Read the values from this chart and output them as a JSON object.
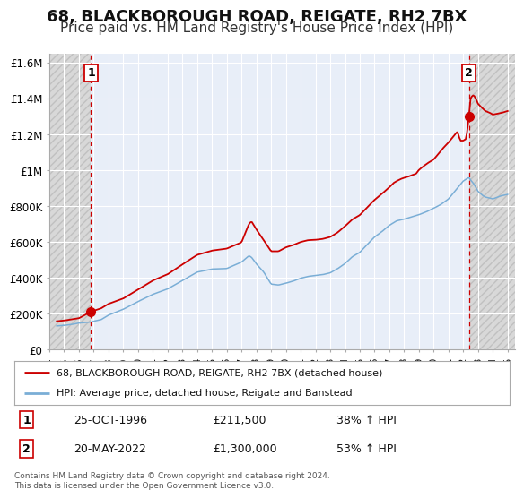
{
  "title": "68, BLACKBOROUGH ROAD, REIGATE, RH2 7BX",
  "subtitle": "Price paid vs. HM Land Registry's House Price Index (HPI)",
  "title_fontsize": 13,
  "subtitle_fontsize": 11,
  "background_color": "#ffffff",
  "plot_bg_color": "#e8eef8",
  "grid_color": "#ffffff",
  "red_line_color": "#cc0000",
  "blue_line_color": "#7aaed6",
  "sale1_date_num": 1996.82,
  "sale1_value": 211500,
  "sale1_label": "1",
  "sale1_date_str": "25-OCT-1996",
  "sale1_price_str": "£211,500",
  "sale1_pct_str": "38% ↑ HPI",
  "sale2_date_num": 2022.38,
  "sale2_value": 1300000,
  "sale2_label": "2",
  "sale2_date_str": "20-MAY-2022",
  "sale2_price_str": "£1,300,000",
  "sale2_pct_str": "53% ↑ HPI",
  "xmin": 1994.0,
  "xmax": 2025.5,
  "ymin": 0,
  "ymax": 1650000,
  "yticks": [
    0,
    200000,
    400000,
    600000,
    800000,
    1000000,
    1200000,
    1400000,
    1600000
  ],
  "ytick_labels": [
    "£0",
    "£200K",
    "£400K",
    "£600K",
    "£800K",
    "£1M",
    "£1.2M",
    "£1.4M",
    "£1.6M"
  ],
  "xticks": [
    1994,
    1995,
    1996,
    1997,
    1998,
    1999,
    2000,
    2001,
    2002,
    2003,
    2004,
    2005,
    2006,
    2007,
    2008,
    2009,
    2010,
    2011,
    2012,
    2013,
    2014,
    2015,
    2016,
    2017,
    2018,
    2019,
    2020,
    2021,
    2022,
    2023,
    2024,
    2025
  ],
  "legend_line1": "68, BLACKBOROUGH ROAD, REIGATE, RH2 7BX (detached house)",
  "legend_line2": "HPI: Average price, detached house, Reigate and Banstead",
  "footer1": "Contains HM Land Registry data © Crown copyright and database right 2024.",
  "footer2": "This data is licensed under the Open Government Licence v3.0."
}
